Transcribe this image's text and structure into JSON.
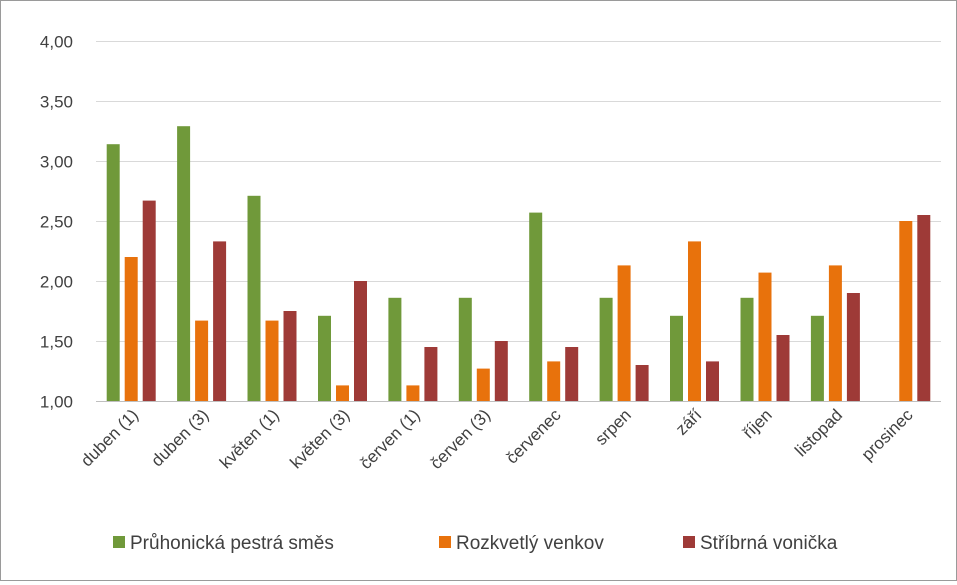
{
  "chart_data": {
    "type": "bar",
    "title": "",
    "xlabel": "",
    "ylabel": "",
    "ylim": [
      1.0,
      4.0
    ],
    "yticks": [
      "1,00",
      "1,50",
      "2,00",
      "2,50",
      "3,00",
      "3,50",
      "4,00"
    ],
    "ytick_values": [
      1.0,
      1.5,
      2.0,
      2.5,
      3.0,
      3.5,
      4.0
    ],
    "grid": true,
    "legend_position": "bottom",
    "categories": [
      "duben (1)",
      "duben (3)",
      "květen (1)",
      "květen (3)",
      "červen (1)",
      "červen (3)",
      "červenec",
      "srpen",
      "září",
      "říjen",
      "listopad",
      "prosinec"
    ],
    "series": [
      {
        "name": "Průhonická pestrá směs",
        "color": "#70993a",
        "values": [
          3.14,
          3.29,
          2.71,
          1.71,
          1.86,
          1.86,
          2.57,
          1.86,
          1.71,
          1.86,
          1.71,
          null
        ]
      },
      {
        "name": "Rozkvetlý venkov",
        "color": "#e8720c",
        "values": [
          2.2,
          1.67,
          1.67,
          1.13,
          1.13,
          1.27,
          1.33,
          2.13,
          2.33,
          2.07,
          2.13,
          2.5
        ]
      },
      {
        "name": "Stříbrná vonička",
        "color": "#9e3a37",
        "values": [
          2.67,
          2.33,
          1.75,
          2.0,
          1.45,
          1.5,
          1.45,
          1.3,
          1.33,
          1.55,
          1.9,
          2.55
        ]
      }
    ]
  }
}
